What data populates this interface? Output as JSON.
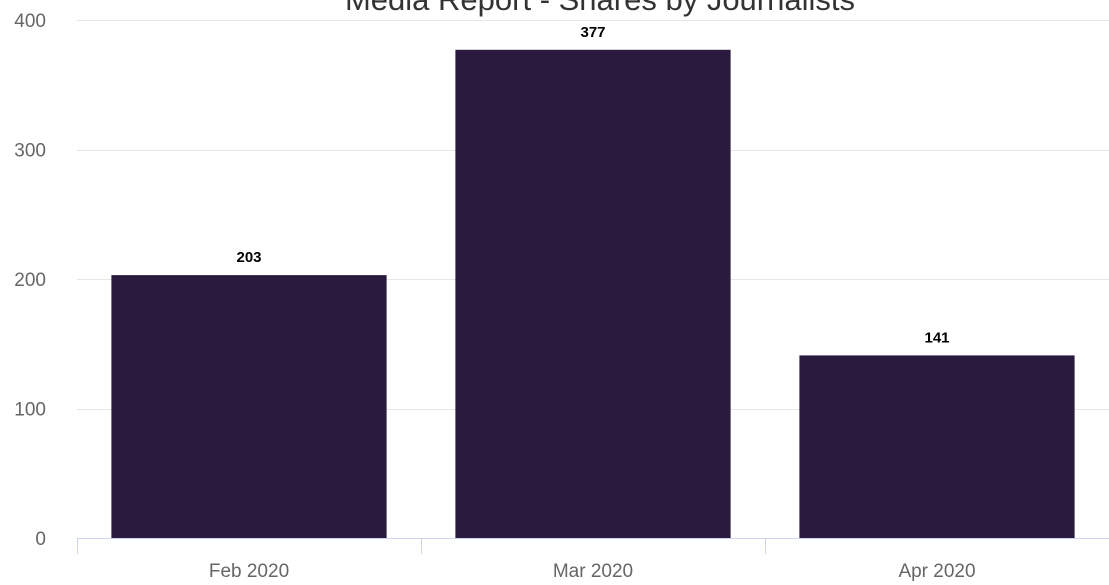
{
  "chart_data": {
    "type": "bar",
    "title": "Media Report - Shares by Journalists",
    "categories": [
      "Feb 2020",
      "Mar 2020",
      "Apr 2020"
    ],
    "values": [
      203,
      377,
      141
    ],
    "data_labels": [
      "203",
      "377",
      "141"
    ],
    "ylim": [
      0,
      400
    ],
    "yticks": [
      0,
      100,
      200,
      300,
      400
    ],
    "ytick_labels": [
      "0",
      "100",
      "200",
      "300",
      "400"
    ],
    "grid": true,
    "legend": "none",
    "bar_color": "#2a1a3d"
  }
}
